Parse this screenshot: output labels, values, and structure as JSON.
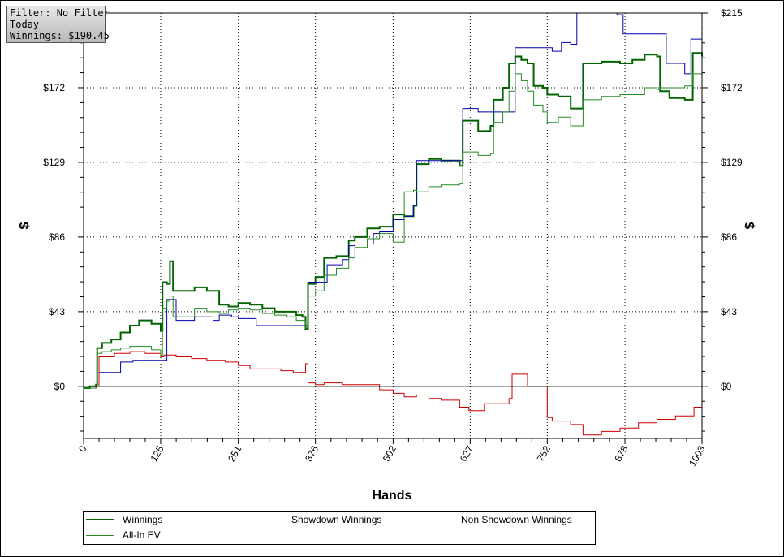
{
  "filter_box": {
    "line1": "Filter: No Filter",
    "line2": "Today",
    "line3": "Winnings: $190.45"
  },
  "chart_data": {
    "type": "line",
    "xlabel": "Hands",
    "ylabel_left": "$",
    "ylabel_right": "$",
    "xlim": [
      0,
      1003
    ],
    "ylim": [
      -30,
      215
    ],
    "x_ticks": [
      "0",
      "125",
      "251",
      "376",
      "502",
      "627",
      "752",
      "878",
      "1003"
    ],
    "x_tick_values": [
      0,
      125,
      251,
      376,
      502,
      627,
      752,
      878,
      1003
    ],
    "y_ticks": [
      "$0",
      "$43",
      "$86",
      "$129",
      "$172",
      "$215"
    ],
    "y_tick_values": [
      0,
      43,
      86,
      129,
      172,
      215
    ],
    "grid": true,
    "legend_position": "bottom",
    "series": [
      {
        "name": "Winnings",
        "color": "#006400",
        "width": 2,
        "points": [
          [
            0,
            -1
          ],
          [
            10,
            0
          ],
          [
            20,
            1
          ],
          [
            22,
            22
          ],
          [
            30,
            25
          ],
          [
            45,
            27
          ],
          [
            60,
            31
          ],
          [
            75,
            35
          ],
          [
            90,
            38
          ],
          [
            110,
            36
          ],
          [
            125,
            32
          ],
          [
            128,
            60
          ],
          [
            135,
            59
          ],
          [
            140,
            72
          ],
          [
            145,
            55
          ],
          [
            160,
            55
          ],
          [
            180,
            57
          ],
          [
            200,
            55
          ],
          [
            220,
            47
          ],
          [
            235,
            46
          ],
          [
            251,
            48
          ],
          [
            270,
            47
          ],
          [
            290,
            45
          ],
          [
            310,
            43
          ],
          [
            330,
            43
          ],
          [
            345,
            41
          ],
          [
            355,
            40
          ],
          [
            360,
            33
          ],
          [
            364,
            59
          ],
          [
            376,
            63
          ],
          [
            390,
            74
          ],
          [
            410,
            75
          ],
          [
            430,
            84
          ],
          [
            440,
            86
          ],
          [
            460,
            91
          ],
          [
            480,
            92
          ],
          [
            502,
            99
          ],
          [
            520,
            98
          ],
          [
            535,
            104
          ],
          [
            540,
            128
          ],
          [
            560,
            131
          ],
          [
            580,
            130
          ],
          [
            610,
            127
          ],
          [
            615,
            153
          ],
          [
            640,
            147
          ],
          [
            660,
            150
          ],
          [
            665,
            165
          ],
          [
            680,
            172
          ],
          [
            690,
            186
          ],
          [
            700,
            190
          ],
          [
            710,
            188
          ],
          [
            720,
            186
          ],
          [
            730,
            173
          ],
          [
            745,
            172
          ],
          [
            752,
            168
          ],
          [
            770,
            167
          ],
          [
            790,
            160
          ],
          [
            810,
            186
          ],
          [
            840,
            187
          ],
          [
            870,
            186
          ],
          [
            890,
            188
          ],
          [
            910,
            191
          ],
          [
            930,
            190
          ],
          [
            935,
            170
          ],
          [
            950,
            166
          ],
          [
            975,
            165
          ],
          [
            988,
            192
          ],
          [
            1003,
            190
          ]
        ]
      },
      {
        "name": "Showdown Winnings",
        "color": "#0000aa",
        "width": 1,
        "points": [
          [
            0,
            -1
          ],
          [
            20,
            0
          ],
          [
            25,
            8
          ],
          [
            50,
            8
          ],
          [
            60,
            14
          ],
          [
            80,
            15
          ],
          [
            110,
            15
          ],
          [
            128,
            15
          ],
          [
            135,
            50
          ],
          [
            150,
            38
          ],
          [
            175,
            38
          ],
          [
            180,
            40
          ],
          [
            210,
            38
          ],
          [
            220,
            41
          ],
          [
            240,
            40
          ],
          [
            251,
            39
          ],
          [
            280,
            35
          ],
          [
            300,
            35
          ],
          [
            360,
            35
          ],
          [
            364,
            60
          ],
          [
            376,
            60
          ],
          [
            395,
            70
          ],
          [
            420,
            73
          ],
          [
            430,
            81
          ],
          [
            440,
            82
          ],
          [
            470,
            88
          ],
          [
            480,
            89
          ],
          [
            502,
            96
          ],
          [
            520,
            98
          ],
          [
            535,
            104
          ],
          [
            540,
            130
          ],
          [
            560,
            130
          ],
          [
            600,
            130
          ],
          [
            615,
            160
          ],
          [
            640,
            158
          ],
          [
            660,
            158
          ],
          [
            700,
            195
          ],
          [
            720,
            195
          ],
          [
            760,
            193
          ],
          [
            775,
            198
          ],
          [
            790,
            197
          ],
          [
            800,
            215
          ],
          [
            830,
            215
          ],
          [
            865,
            214
          ],
          [
            875,
            203
          ],
          [
            900,
            203
          ],
          [
            940,
            203
          ],
          [
            945,
            186
          ],
          [
            960,
            186
          ],
          [
            975,
            180
          ],
          [
            985,
            200
          ],
          [
            1003,
            198
          ]
        ]
      },
      {
        "name": "Non Showdown Winnings",
        "color": "#cc0000",
        "width": 1,
        "points": [
          [
            0,
            -1
          ],
          [
            20,
            0
          ],
          [
            25,
            17
          ],
          [
            50,
            19
          ],
          [
            75,
            20
          ],
          [
            100,
            19
          ],
          [
            125,
            17
          ],
          [
            130,
            18
          ],
          [
            150,
            17
          ],
          [
            175,
            16
          ],
          [
            200,
            15
          ],
          [
            230,
            14
          ],
          [
            251,
            12
          ],
          [
            270,
            10
          ],
          [
            300,
            10
          ],
          [
            320,
            9
          ],
          [
            340,
            8
          ],
          [
            360,
            13
          ],
          [
            364,
            2
          ],
          [
            376,
            1
          ],
          [
            390,
            2
          ],
          [
            420,
            1
          ],
          [
            450,
            1
          ],
          [
            480,
            -2
          ],
          [
            502,
            -4
          ],
          [
            520,
            -6
          ],
          [
            540,
            -5
          ],
          [
            560,
            -7
          ],
          [
            580,
            -8
          ],
          [
            610,
            -12
          ],
          [
            625,
            -14
          ],
          [
            650,
            -10
          ],
          [
            690,
            -7
          ],
          [
            695,
            7
          ],
          [
            710,
            7
          ],
          [
            720,
            0
          ],
          [
            752,
            -18
          ],
          [
            760,
            -20
          ],
          [
            790,
            -22
          ],
          [
            810,
            -28
          ],
          [
            840,
            -26
          ],
          [
            870,
            -24
          ],
          [
            900,
            -21
          ],
          [
            930,
            -19
          ],
          [
            960,
            -17
          ],
          [
            990,
            -12
          ],
          [
            1003,
            -10
          ]
        ]
      },
      {
        "name": "All-In EV",
        "color": "#228b22",
        "width": 1,
        "points": [
          [
            0,
            -1
          ],
          [
            20,
            0
          ],
          [
            22,
            19
          ],
          [
            30,
            20
          ],
          [
            45,
            21
          ],
          [
            60,
            22
          ],
          [
            75,
            23
          ],
          [
            90,
            23
          ],
          [
            110,
            21
          ],
          [
            125,
            18
          ],
          [
            128,
            45
          ],
          [
            135,
            49
          ],
          [
            140,
            52
          ],
          [
            145,
            40
          ],
          [
            160,
            40
          ],
          [
            180,
            45
          ],
          [
            200,
            43
          ],
          [
            220,
            42
          ],
          [
            235,
            44
          ],
          [
            251,
            45
          ],
          [
            270,
            44
          ],
          [
            290,
            42
          ],
          [
            310,
            41
          ],
          [
            330,
            40
          ],
          [
            345,
            38
          ],
          [
            360,
            34
          ],
          [
            364,
            52
          ],
          [
            376,
            55
          ],
          [
            390,
            64
          ],
          [
            410,
            68
          ],
          [
            430,
            74
          ],
          [
            440,
            80
          ],
          [
            460,
            85
          ],
          [
            480,
            88
          ],
          [
            502,
            83
          ],
          [
            520,
            112
          ],
          [
            535,
            113
          ],
          [
            540,
            112
          ],
          [
            560,
            115
          ],
          [
            580,
            116
          ],
          [
            610,
            117
          ],
          [
            615,
            135
          ],
          [
            640,
            133
          ],
          [
            660,
            134
          ],
          [
            665,
            152
          ],
          [
            680,
            158
          ],
          [
            690,
            170
          ],
          [
            700,
            180
          ],
          [
            710,
            176
          ],
          [
            720,
            170
          ],
          [
            730,
            162
          ],
          [
            745,
            158
          ],
          [
            752,
            152
          ],
          [
            770,
            155
          ],
          [
            790,
            150
          ],
          [
            810,
            165
          ],
          [
            840,
            167
          ],
          [
            870,
            168
          ],
          [
            890,
            168
          ],
          [
            910,
            172
          ],
          [
            930,
            171
          ],
          [
            935,
            172
          ],
          [
            950,
            172
          ],
          [
            975,
            173
          ],
          [
            988,
            180
          ],
          [
            1003,
            182
          ]
        ]
      }
    ]
  }
}
